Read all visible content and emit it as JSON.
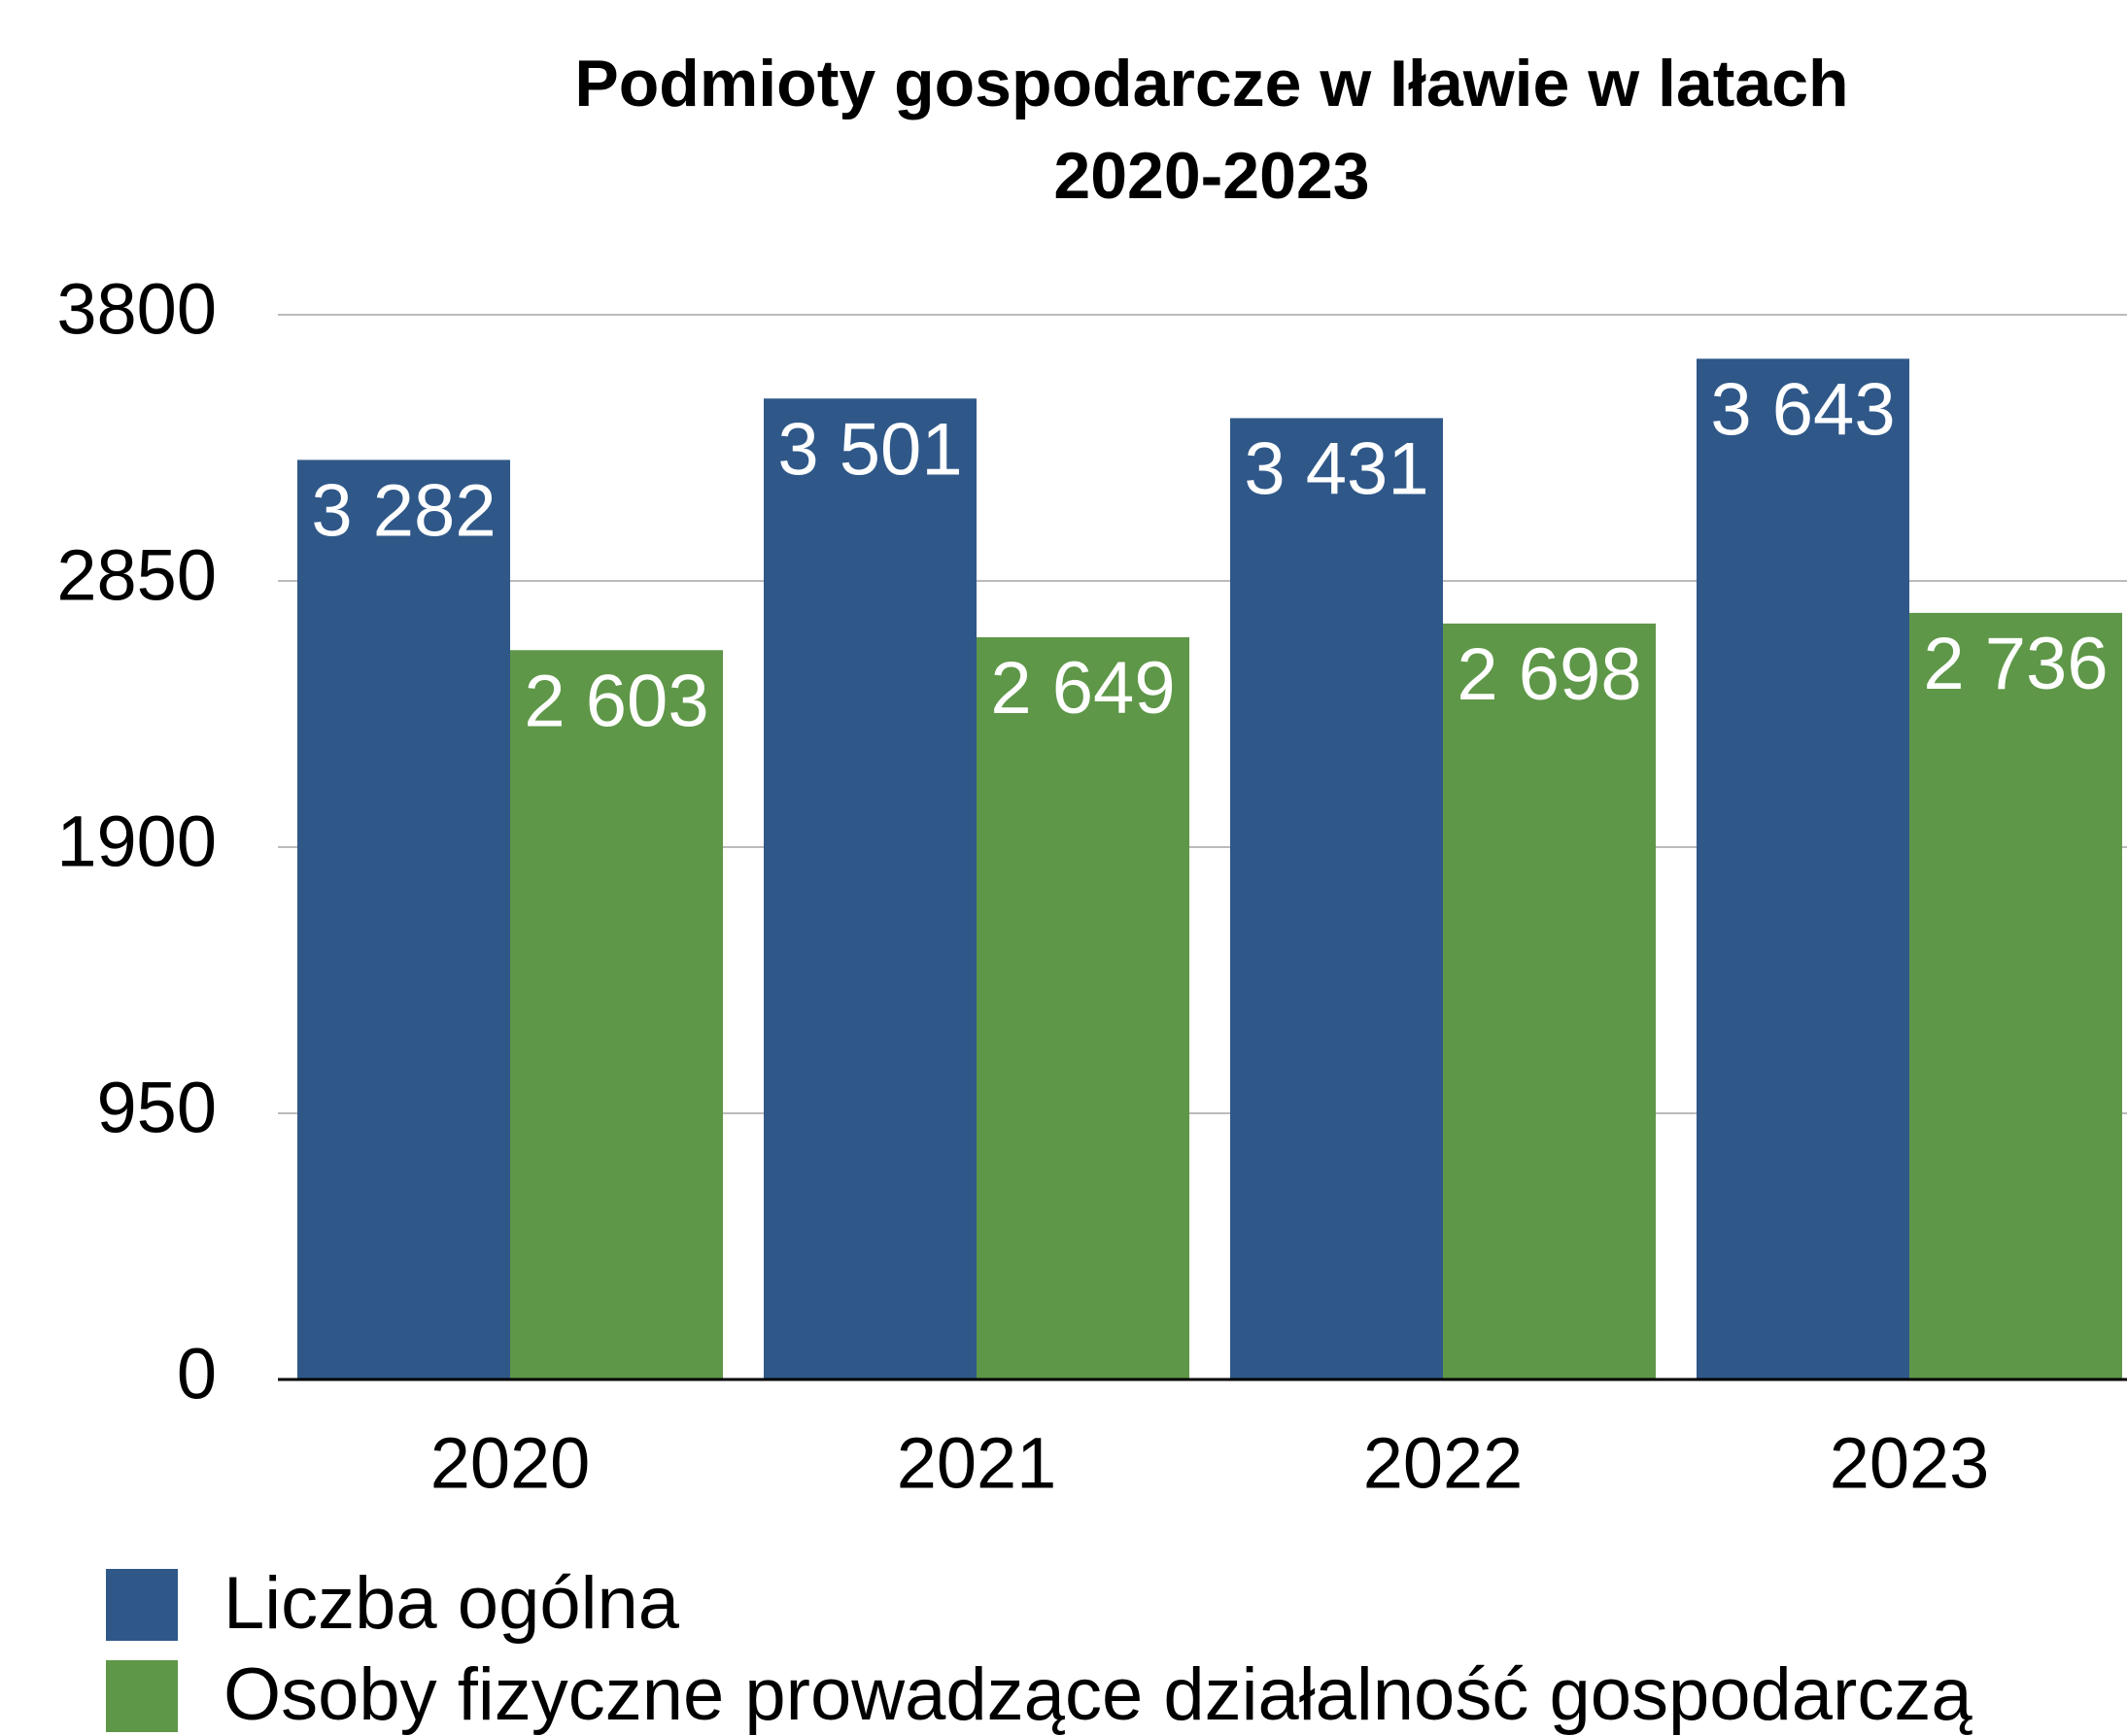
{
  "chart_data": {
    "type": "bar",
    "title": [
      "Podmioty gospodarcze w Iławie w latach",
      "2020-2023"
    ],
    "categories": [
      "2020",
      "2021",
      "2022",
      "2023"
    ],
    "series": [
      {
        "name": "Liczba ogólna",
        "color": "#2f5889",
        "values": [
          3282,
          3501,
          3431,
          3643
        ],
        "value_labels": [
          "3 282",
          "3 501",
          "3 431",
          "3 643"
        ]
      },
      {
        "name": "Osoby fizyczne prowadzące działalność gospodarczą",
        "color": "#5e9748",
        "values": [
          2603,
          2649,
          2698,
          2736
        ],
        "value_labels": [
          "2 603",
          "2 649",
          "2 698",
          "2 736"
        ]
      }
    ],
    "ylim": [
      0,
      3800
    ],
    "yticks": [
      0,
      950,
      1900,
      2850,
      3800
    ],
    "grid": true,
    "legend": "bottom-left"
  }
}
